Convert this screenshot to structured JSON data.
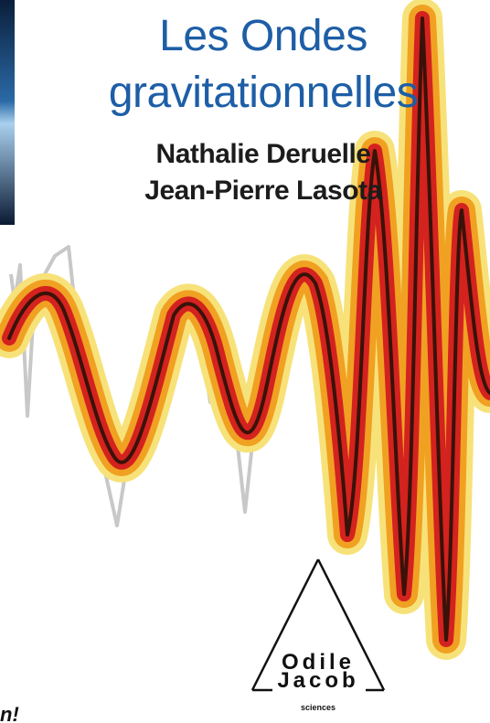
{
  "book": {
    "title_line1": "Les Ondes",
    "title_line2": "gravitationnelles",
    "author1": "Nathalie Deruelle",
    "author2": "Jean-Pierre Lasota",
    "publisher_line1": "Odile",
    "publisher_line2": "Jacob",
    "publisher_tag": "sciences",
    "fragment": "n!"
  },
  "colors": {
    "title": "#1d5ea6",
    "authors": "#1c1c1c",
    "wave_outer": "#f7e27a",
    "wave_mid": "#f0a122",
    "wave_inner": "#d4221f",
    "wave_core": "#3a1208"
  }
}
